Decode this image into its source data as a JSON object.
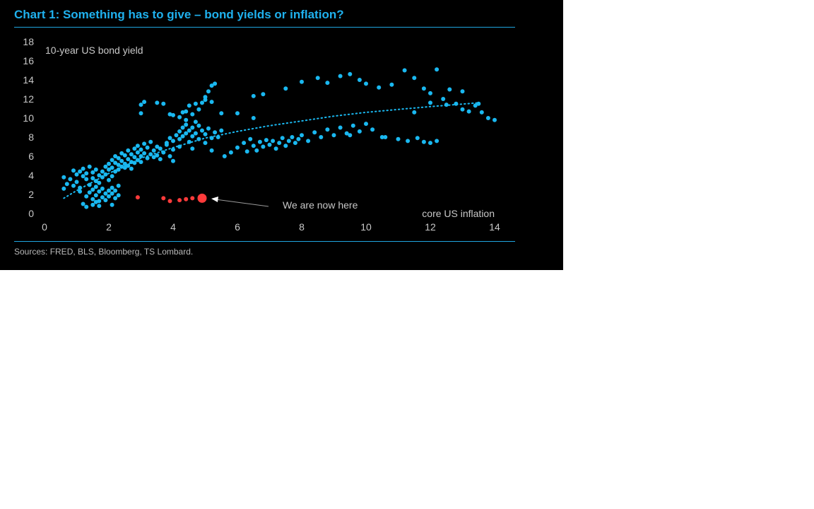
{
  "title": "Chart 1: Something has to give – bond yields or inflation?",
  "source": "Sources: FRED, BLS, Bloomberg, TS Lombard.",
  "colors": {
    "background": "#000000",
    "accent": "#1fb1ee",
    "historical": "#1ab8f0",
    "recent": "#ff3b3b",
    "text": "#c8c8c8"
  },
  "chart_data": {
    "type": "scatter",
    "title": "Chart 1: Something has to give – bond yields or inflation?",
    "xlabel": "core US inflation",
    "ylabel": "10-year US bond yield",
    "xlim": [
      0,
      14
    ],
    "ylim": [
      0,
      18
    ],
    "x_ticks": [
      "0",
      "2",
      "4",
      "6",
      "8",
      "10",
      "12",
      "14"
    ],
    "y_ticks": [
      "0",
      "2",
      "4",
      "6",
      "8",
      "10",
      "12",
      "14",
      "16",
      "18"
    ],
    "grid": false,
    "annotation": {
      "text": "We are now here",
      "target": [
        4.9,
        1.6
      ]
    },
    "series": [
      {
        "kind": "historical",
        "points": [
          [
            0.6,
            2.6
          ],
          [
            0.6,
            3.8
          ],
          [
            0.7,
            3.1
          ],
          [
            0.8,
            3.6
          ],
          [
            0.9,
            2.9
          ],
          [
            0.9,
            4.5
          ],
          [
            1.0,
            4.1
          ],
          [
            1.0,
            3.3
          ],
          [
            1.1,
            2.7
          ],
          [
            1.1,
            4.4
          ],
          [
            1.2,
            3.9
          ],
          [
            1.2,
            4.7
          ],
          [
            1.3,
            3.6
          ],
          [
            1.3,
            4.2
          ],
          [
            1.4,
            3.0
          ],
          [
            1.4,
            4.9
          ],
          [
            1.5,
            3.7
          ],
          [
            1.5,
            4.3
          ],
          [
            1.6,
            4.6
          ],
          [
            1.6,
            3.4
          ],
          [
            1.7,
            4.0
          ],
          [
            1.7,
            3.2
          ],
          [
            1.8,
            4.4
          ],
          [
            1.8,
            3.8
          ],
          [
            1.9,
            4.9
          ],
          [
            1.9,
            4.1
          ],
          [
            2.0,
            5.2
          ],
          [
            2.0,
            4.6
          ],
          [
            2.0,
            3.5
          ],
          [
            2.1,
            5.6
          ],
          [
            2.1,
            4.8
          ],
          [
            2.1,
            3.9
          ],
          [
            2.2,
            5.3
          ],
          [
            2.2,
            4.4
          ],
          [
            2.2,
            6.0
          ],
          [
            2.3,
            5.1
          ],
          [
            2.3,
            4.6
          ],
          [
            2.3,
            5.8
          ],
          [
            2.4,
            4.9
          ],
          [
            2.4,
            5.5
          ],
          [
            2.4,
            6.3
          ],
          [
            2.5,
            5.2
          ],
          [
            2.5,
            4.8
          ],
          [
            2.5,
            6.1
          ],
          [
            2.6,
            5.7
          ],
          [
            2.6,
            5.0
          ],
          [
            2.6,
            6.6
          ],
          [
            2.7,
            5.4
          ],
          [
            2.7,
            6.2
          ],
          [
            2.7,
            4.7
          ],
          [
            2.8,
            5.9
          ],
          [
            2.8,
            6.8
          ],
          [
            2.8,
            5.3
          ],
          [
            2.9,
            6.4
          ],
          [
            2.9,
            5.6
          ],
          [
            2.9,
            7.1
          ],
          [
            3.0,
            6.0
          ],
          [
            3.0,
            6.7
          ],
          [
            3.0,
            5.4
          ],
          [
            3.1,
            6.3
          ],
          [
            3.1,
            7.3
          ],
          [
            3.2,
            5.8
          ],
          [
            3.2,
            6.9
          ],
          [
            3.3,
            6.2
          ],
          [
            3.3,
            7.5
          ],
          [
            3.4,
            5.9
          ],
          [
            3.4,
            6.6
          ],
          [
            3.5,
            7.0
          ],
          [
            3.5,
            6.1
          ],
          [
            3.6,
            6.8
          ],
          [
            3.6,
            5.7
          ],
          [
            3.7,
            6.4
          ],
          [
            3.8,
            7.2
          ],
          [
            3.9,
            6.0
          ],
          [
            4.0,
            6.7
          ],
          [
            4.0,
            5.5
          ],
          [
            1.1,
            2.3
          ],
          [
            1.3,
            1.8
          ],
          [
            1.4,
            2.2
          ],
          [
            1.5,
            1.5
          ],
          [
            1.5,
            2.5
          ],
          [
            1.6,
            1.9
          ],
          [
            1.6,
            2.8
          ],
          [
            1.7,
            1.3
          ],
          [
            1.7,
            2.3
          ],
          [
            1.8,
            2.6
          ],
          [
            1.8,
            1.7
          ],
          [
            1.9,
            2.1
          ],
          [
            1.9,
            1.4
          ],
          [
            2.0,
            2.4
          ],
          [
            2.0,
            1.8
          ],
          [
            2.1,
            2.7
          ],
          [
            2.1,
            2.1
          ],
          [
            2.2,
            1.6
          ],
          [
            2.2,
            2.4
          ],
          [
            2.3,
            1.9
          ],
          [
            2.3,
            2.9
          ],
          [
            1.2,
            1.0
          ],
          [
            1.3,
            0.7
          ],
          [
            1.5,
            0.9
          ],
          [
            1.6,
            1.2
          ],
          [
            1.7,
            0.8
          ],
          [
            2.1,
            0.9
          ],
          [
            3.8,
            7.4
          ],
          [
            3.9,
            7.9
          ],
          [
            4.0,
            7.6
          ],
          [
            4.1,
            8.2
          ],
          [
            4.2,
            7.8
          ],
          [
            4.2,
            8.6
          ],
          [
            4.3,
            8.1
          ],
          [
            4.3,
            9.0
          ],
          [
            4.4,
            8.4
          ],
          [
            4.4,
            9.3
          ],
          [
            4.5,
            8.7
          ],
          [
            4.5,
            7.5
          ],
          [
            4.6,
            9.0
          ],
          [
            4.6,
            8.1
          ],
          [
            4.7,
            9.6
          ],
          [
            4.7,
            8.4
          ],
          [
            4.8,
            9.2
          ],
          [
            4.8,
            7.8
          ],
          [
            4.9,
            8.7
          ],
          [
            5.0,
            8.3
          ],
          [
            5.0,
            7.4
          ],
          [
            5.1,
            8.9
          ],
          [
            5.2,
            7.9
          ],
          [
            5.3,
            8.5
          ],
          [
            5.4,
            8.0
          ],
          [
            5.5,
            8.7
          ],
          [
            4.2,
            10.1
          ],
          [
            4.3,
            10.6
          ],
          [
            4.4,
            9.8
          ],
          [
            4.5,
            11.3
          ],
          [
            4.6,
            10.4
          ],
          [
            4.7,
            11.5
          ],
          [
            4.8,
            10.9
          ],
          [
            4.9,
            11.6
          ],
          [
            5.0,
            12.2
          ],
          [
            5.1,
            12.8
          ],
          [
            5.2,
            13.4
          ],
          [
            5.0,
            11.9
          ],
          [
            5.2,
            11.7
          ],
          [
            5.3,
            13.6
          ],
          [
            3.0,
            11.4
          ],
          [
            3.1,
            11.7
          ],
          [
            3.5,
            11.6
          ],
          [
            3.7,
            11.5
          ],
          [
            3.9,
            10.4
          ],
          [
            4.0,
            10.3
          ],
          [
            4.4,
            10.7
          ],
          [
            3.0,
            10.5
          ],
          [
            5.5,
            10.5
          ],
          [
            6.0,
            10.5
          ],
          [
            6.5,
            10.0
          ],
          [
            6.5,
            12.3
          ],
          [
            4.2,
            7.0
          ],
          [
            4.6,
            6.8
          ],
          [
            5.2,
            6.6
          ],
          [
            5.6,
            6.0
          ],
          [
            5.8,
            6.4
          ],
          [
            6.0,
            6.9
          ],
          [
            6.2,
            7.4
          ],
          [
            6.3,
            6.5
          ],
          [
            6.4,
            7.8
          ],
          [
            6.5,
            7.1
          ],
          [
            6.6,
            6.6
          ],
          [
            6.7,
            7.5
          ],
          [
            6.8,
            7.0
          ],
          [
            6.9,
            7.7
          ],
          [
            7.0,
            7.2
          ],
          [
            7.1,
            7.6
          ],
          [
            7.2,
            6.8
          ],
          [
            7.3,
            7.4
          ],
          [
            7.4,
            7.9
          ],
          [
            7.5,
            7.1
          ],
          [
            7.6,
            7.6
          ],
          [
            7.7,
            8.0
          ],
          [
            7.8,
            7.4
          ],
          [
            7.9,
            7.8
          ],
          [
            8.0,
            8.2
          ],
          [
            8.2,
            7.6
          ],
          [
            8.4,
            8.5
          ],
          [
            8.6,
            8.0
          ],
          [
            8.8,
            8.8
          ],
          [
            9.0,
            8.2
          ],
          [
            9.2,
            9.0
          ],
          [
            9.4,
            8.4
          ],
          [
            9.6,
            9.2
          ],
          [
            9.8,
            8.6
          ],
          [
            10.0,
            9.4
          ],
          [
            10.2,
            8.8
          ],
          [
            10.6,
            8.0
          ],
          [
            11.0,
            7.8
          ],
          [
            11.3,
            7.6
          ],
          [
            11.6,
            7.9
          ],
          [
            11.8,
            7.5
          ],
          [
            12.0,
            7.4
          ],
          [
            12.2,
            7.6
          ],
          [
            9.5,
            8.2
          ],
          [
            10.5,
            8.0
          ],
          [
            6.8,
            12.5
          ],
          [
            7.5,
            13.1
          ],
          [
            8.0,
            13.8
          ],
          [
            8.5,
            14.2
          ],
          [
            8.8,
            13.7
          ],
          [
            9.2,
            14.4
          ],
          [
            9.5,
            14.6
          ],
          [
            9.8,
            14.0
          ],
          [
            10.0,
            13.6
          ],
          [
            10.4,
            13.2
          ],
          [
            10.8,
            13.5
          ],
          [
            11.2,
            15.0
          ],
          [
            11.5,
            14.2
          ],
          [
            11.8,
            13.1
          ],
          [
            12.0,
            12.6
          ],
          [
            12.2,
            15.1
          ],
          [
            12.4,
            12.0
          ],
          [
            12.6,
            13.0
          ],
          [
            12.8,
            11.5
          ],
          [
            13.0,
            12.8
          ],
          [
            13.2,
            10.7
          ],
          [
            13.4,
            11.3
          ],
          [
            13.6,
            10.6
          ],
          [
            13.8,
            10.0
          ],
          [
            14.0,
            9.8
          ],
          [
            12.0,
            11.6
          ],
          [
            11.5,
            10.6
          ],
          [
            12.5,
            11.4
          ],
          [
            13.0,
            10.9
          ],
          [
            13.5,
            11.5
          ]
        ]
      },
      {
        "kind": "recent",
        "points": [
          [
            2.9,
            1.7
          ],
          [
            3.7,
            1.6
          ],
          [
            3.9,
            1.3
          ],
          [
            4.2,
            1.4
          ],
          [
            4.4,
            1.5
          ],
          [
            4.6,
            1.6
          ]
        ]
      },
      {
        "kind": "latest",
        "points": [
          [
            4.9,
            1.6
          ]
        ]
      }
    ],
    "trendline": {
      "style": "dotted",
      "points": [
        [
          0.6,
          1.6
        ],
        [
          1,
          2.4
        ],
        [
          2,
          4.2
        ],
        [
          3,
          5.8
        ],
        [
          4,
          6.9
        ],
        [
          5,
          7.9
        ],
        [
          6,
          8.6
        ],
        [
          7,
          9.2
        ],
        [
          8,
          9.7
        ],
        [
          9,
          10.2
        ],
        [
          10,
          10.6
        ],
        [
          11,
          10.9
        ],
        [
          12,
          11.2
        ],
        [
          13.5,
          11.6
        ]
      ]
    }
  }
}
